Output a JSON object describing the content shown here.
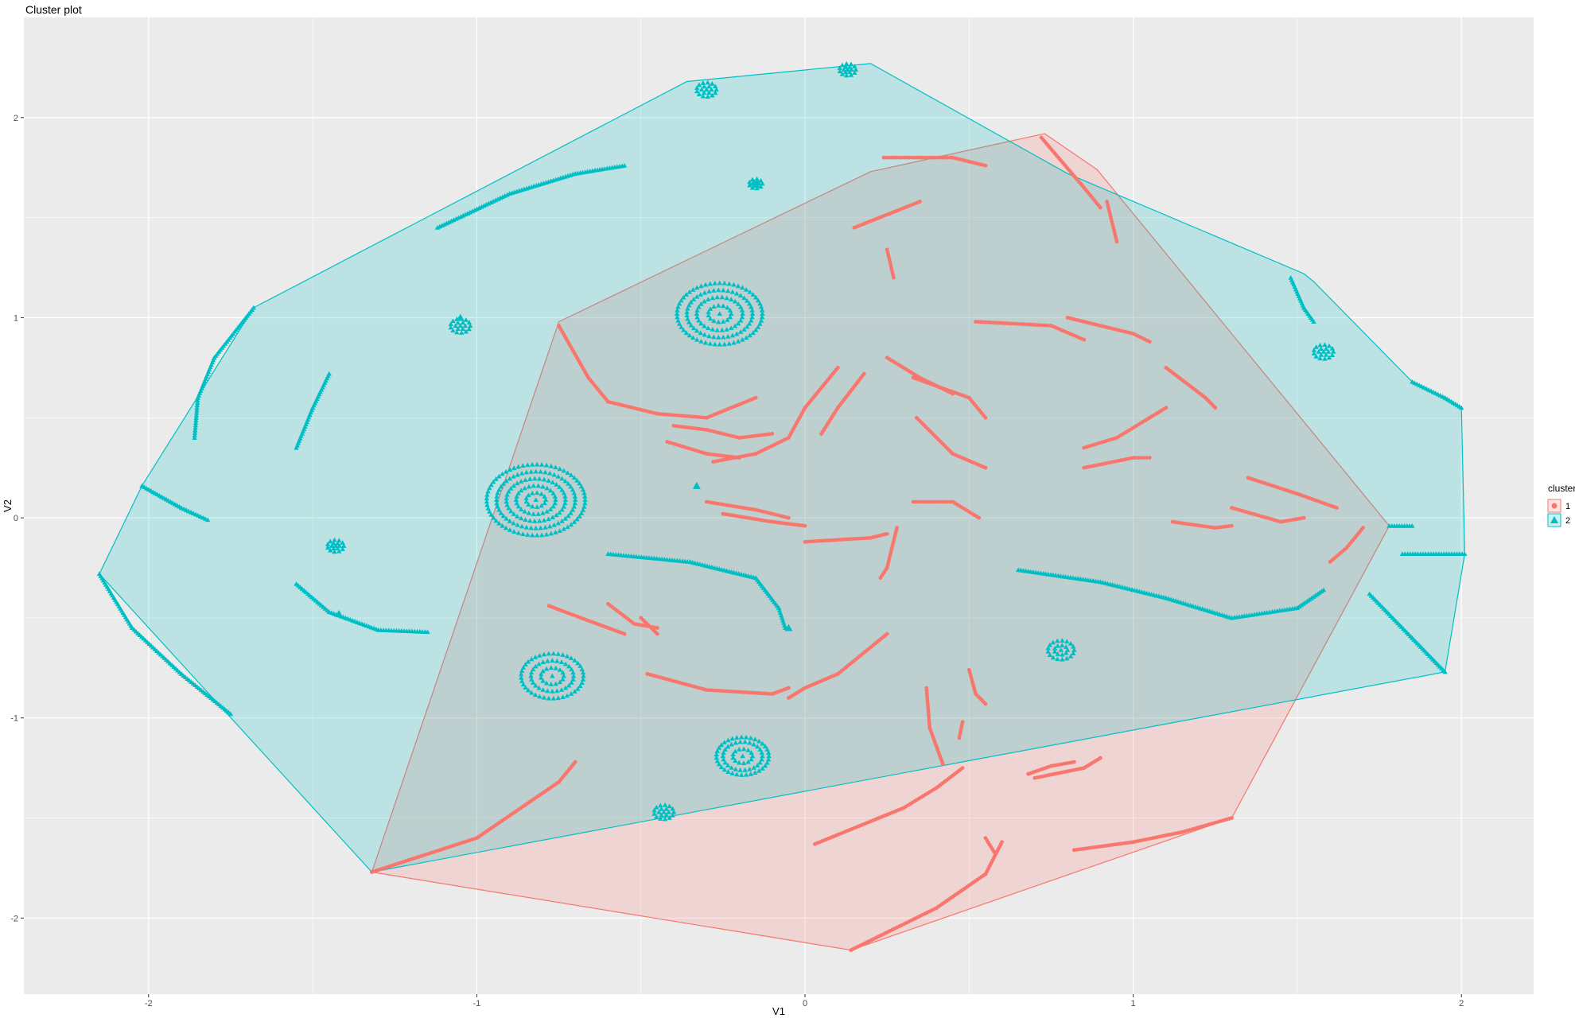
{
  "chart_data": {
    "type": "scatter",
    "title": "Cluster plot",
    "xlabel": "V1",
    "ylabel": "V2",
    "xlim": [
      -2.38,
      2.22
    ],
    "ylim": [
      -2.38,
      2.5
    ],
    "x_ticks": [
      -2,
      -1,
      0,
      1,
      2
    ],
    "y_ticks": [
      -2,
      -1,
      0,
      1,
      2
    ],
    "x_tick_labels": [
      "-2",
      "-1",
      "0",
      "1",
      "2"
    ],
    "y_tick_labels": [
      "-2",
      "-1",
      "0",
      "1",
      "2"
    ],
    "grid": true,
    "legend": {
      "title": "cluster",
      "placement": "right"
    },
    "colors": {
      "panel": "#ebebeb",
      "grid": "#ffffff",
      "cluster1": "#f8766d",
      "cluster2": "#00bfc4"
    },
    "clusters": [
      {
        "name": "1",
        "marker": "circle",
        "color": "#f8766d",
        "hull": [
          [
            -1.32,
            -1.77
          ],
          [
            0.14,
            -2.16
          ],
          [
            1.3,
            -1.5
          ],
          [
            1.78,
            -0.04
          ],
          [
            0.89,
            1.74
          ],
          [
            0.73,
            1.92
          ],
          [
            0.2,
            1.73
          ],
          [
            -0.75,
            0.98
          ]
        ],
        "segments": [
          [
            [
              -0.75,
              0.96
            ],
            [
              -0.66,
              0.7
            ],
            [
              -0.6,
              0.58
            ],
            [
              -0.45,
              0.52
            ],
            [
              -0.3,
              0.5
            ],
            [
              -0.15,
              0.6
            ]
          ],
          [
            [
              0.24,
              1.8
            ],
            [
              0.45,
              1.8
            ],
            [
              0.55,
              1.76
            ]
          ],
          [
            [
              0.15,
              1.45
            ],
            [
              0.35,
              1.58
            ]
          ],
          [
            [
              0.72,
              1.9
            ],
            [
              0.85,
              1.65
            ],
            [
              0.9,
              1.55
            ]
          ],
          [
            [
              0.92,
              1.58
            ],
            [
              0.95,
              1.38
            ]
          ],
          [
            [
              0.25,
              1.34
            ],
            [
              0.27,
              1.2
            ]
          ],
          [
            [
              0.52,
              0.98
            ],
            [
              0.75,
              0.96
            ],
            [
              0.85,
              0.89
            ]
          ],
          [
            [
              0.8,
              1.0
            ],
            [
              1.0,
              0.92
            ],
            [
              1.05,
              0.88
            ]
          ],
          [
            [
              0.25,
              0.8
            ],
            [
              0.35,
              0.7
            ],
            [
              0.45,
              0.62
            ]
          ],
          [
            [
              0.33,
              0.7
            ],
            [
              0.5,
              0.6
            ],
            [
              0.55,
              0.5
            ]
          ],
          [
            [
              0.34,
              0.5
            ],
            [
              0.45,
              0.32
            ],
            [
              0.55,
              0.25
            ]
          ],
          [
            [
              0.1,
              0.75
            ],
            [
              0.0,
              0.55
            ],
            [
              -0.05,
              0.4
            ]
          ],
          [
            [
              0.18,
              0.72
            ],
            [
              0.1,
              0.55
            ],
            [
              0.05,
              0.42
            ]
          ],
          [
            [
              -0.4,
              0.46
            ],
            [
              -0.3,
              0.44
            ],
            [
              -0.2,
              0.4
            ],
            [
              -0.1,
              0.42
            ]
          ],
          [
            [
              -0.42,
              0.38
            ],
            [
              -0.3,
              0.32
            ],
            [
              -0.2,
              0.3
            ]
          ],
          [
            [
              -0.28,
              0.28
            ],
            [
              -0.15,
              0.32
            ],
            [
              -0.05,
              0.4
            ]
          ],
          [
            [
              1.1,
              0.75
            ],
            [
              1.22,
              0.6
            ],
            [
              1.25,
              0.55
            ]
          ],
          [
            [
              0.85,
              0.35
            ],
            [
              0.95,
              0.4
            ],
            [
              1.05,
              0.5
            ],
            [
              1.1,
              0.55
            ]
          ],
          [
            [
              0.85,
              0.25
            ],
            [
              1.0,
              0.3
            ],
            [
              1.05,
              0.3
            ]
          ],
          [
            [
              -0.3,
              0.08
            ],
            [
              -0.15,
              0.04
            ],
            [
              -0.05,
              0.0
            ]
          ],
          [
            [
              -0.25,
              0.02
            ],
            [
              -0.1,
              -0.02
            ],
            [
              0.0,
              -0.04
            ]
          ],
          [
            [
              0.0,
              -0.12
            ],
            [
              0.2,
              -0.1
            ],
            [
              0.25,
              -0.08
            ]
          ],
          [
            [
              0.28,
              -0.05
            ],
            [
              0.25,
              -0.25
            ],
            [
              0.23,
              -0.3
            ]
          ],
          [
            [
              0.33,
              0.08
            ],
            [
              0.45,
              0.08
            ],
            [
              0.53,
              0.0
            ]
          ],
          [
            [
              1.35,
              0.2
            ],
            [
              1.5,
              0.12
            ],
            [
              1.62,
              0.05
            ]
          ],
          [
            [
              1.3,
              0.05
            ],
            [
              1.45,
              -0.02
            ],
            [
              1.52,
              0.0
            ]
          ],
          [
            [
              1.12,
              -0.02
            ],
            [
              1.25,
              -0.05
            ],
            [
              1.3,
              -0.04
            ]
          ],
          [
            [
              1.7,
              -0.05
            ],
            [
              1.65,
              -0.15
            ],
            [
              1.6,
              -0.22
            ]
          ],
          [
            [
              -0.78,
              -0.44
            ],
            [
              -0.65,
              -0.52
            ],
            [
              -0.55,
              -0.58
            ]
          ],
          [
            [
              -0.6,
              -0.43
            ],
            [
              -0.52,
              -0.53
            ],
            [
              -0.45,
              -0.55
            ]
          ],
          [
            [
              -0.5,
              -0.5
            ],
            [
              -0.45,
              -0.58
            ]
          ],
          [
            [
              -0.48,
              -0.78
            ],
            [
              -0.3,
              -0.86
            ],
            [
              -0.1,
              -0.88
            ],
            [
              -0.05,
              -0.85
            ]
          ],
          [
            [
              -0.05,
              -0.9
            ],
            [
              0.0,
              -0.85
            ],
            [
              0.1,
              -0.78
            ],
            [
              0.25,
              -0.58
            ]
          ],
          [
            [
              0.37,
              -0.85
            ],
            [
              0.38,
              -1.05
            ],
            [
              0.42,
              -1.23
            ]
          ],
          [
            [
              0.5,
              -0.76
            ],
            [
              0.52,
              -0.88
            ],
            [
              0.55,
              -0.93
            ]
          ],
          [
            [
              0.47,
              -1.1
            ],
            [
              0.48,
              -1.02
            ]
          ],
          [
            [
              -1.32,
              -1.77
            ],
            [
              -1.0,
              -1.6
            ],
            [
              -0.75,
              -1.32
            ],
            [
              -0.7,
              -1.22
            ]
          ],
          [
            [
              0.03,
              -1.63
            ],
            [
              0.3,
              -1.45
            ],
            [
              0.4,
              -1.35
            ],
            [
              0.48,
              -1.25
            ]
          ],
          [
            [
              0.14,
              -2.16
            ],
            [
              0.4,
              -1.95
            ],
            [
              0.55,
              -1.78
            ],
            [
              0.6,
              -1.62
            ]
          ],
          [
            [
              0.55,
              -1.6
            ],
            [
              0.58,
              -1.68
            ]
          ],
          [
            [
              0.68,
              -1.28
            ],
            [
              0.75,
              -1.24
            ],
            [
              0.82,
              -1.22
            ]
          ],
          [
            [
              0.7,
              -1.3
            ],
            [
              0.85,
              -1.25
            ],
            [
              0.9,
              -1.2
            ]
          ],
          [
            [
              0.82,
              -1.66
            ],
            [
              1.0,
              -1.62
            ],
            [
              1.15,
              -1.57
            ],
            [
              1.3,
              -1.5
            ]
          ]
        ]
      },
      {
        "name": "2",
        "marker": "triangle",
        "color": "#00bfc4",
        "hull": [
          [
            -1.32,
            -1.77
          ],
          [
            1.95,
            -0.77
          ],
          [
            2.01,
            -0.18
          ],
          [
            2.0,
            0.55
          ],
          [
            1.85,
            0.68
          ],
          [
            1.55,
            1.18
          ],
          [
            1.52,
            1.22
          ],
          [
            0.8,
            1.72
          ],
          [
            0.2,
            2.27
          ],
          [
            -0.36,
            2.18
          ],
          [
            -1.68,
            1.05
          ],
          [
            -2.02,
            0.16
          ],
          [
            -2.15,
            -0.28
          ]
        ],
        "segments": [
          [
            [
              -2.15,
              -0.28
            ],
            [
              -2.05,
              -0.55
            ],
            [
              -1.9,
              -0.78
            ],
            [
              -1.75,
              -0.98
            ]
          ],
          [
            [
              -1.68,
              1.05
            ],
            [
              -1.8,
              0.8
            ],
            [
              -1.85,
              0.6
            ],
            [
              -1.86,
              0.4
            ]
          ],
          [
            [
              -1.55,
              -0.33
            ],
            [
              -1.45,
              -0.47
            ],
            [
              -1.3,
              -0.56
            ],
            [
              -1.15,
              -0.57
            ]
          ],
          [
            [
              -2.02,
              0.16
            ],
            [
              -1.9,
              0.05
            ],
            [
              -1.82,
              -0.01
            ]
          ],
          [
            [
              -1.12,
              1.45
            ],
            [
              -0.9,
              1.62
            ],
            [
              -0.7,
              1.72
            ],
            [
              -0.55,
              1.76
            ]
          ],
          [
            [
              -1.45,
              0.72
            ],
            [
              -1.5,
              0.55
            ],
            [
              -1.55,
              0.35
            ]
          ],
          [
            [
              -0.6,
              -0.18
            ],
            [
              -0.35,
              -0.22
            ],
            [
              -0.15,
              -0.3
            ],
            [
              -0.08,
              -0.45
            ],
            [
              -0.06,
              -0.55
            ]
          ],
          [
            [
              0.65,
              -0.26
            ],
            [
              0.9,
              -0.32
            ],
            [
              1.1,
              -0.4
            ],
            [
              1.3,
              -0.5
            ],
            [
              1.5,
              -0.45
            ],
            [
              1.58,
              -0.36
            ]
          ],
          [
            [
              1.82,
              -0.18
            ],
            [
              2.01,
              -0.18
            ]
          ],
          [
            [
              1.72,
              -0.38
            ],
            [
              1.85,
              -0.6
            ],
            [
              1.95,
              -0.77
            ]
          ],
          [
            [
              1.78,
              -0.04
            ],
            [
              1.85,
              -0.04
            ]
          ],
          [
            [
              1.48,
              1.2
            ],
            [
              1.52,
              1.05
            ],
            [
              1.55,
              0.98
            ]
          ],
          [
            [
              1.85,
              0.68
            ],
            [
              1.95,
              0.6
            ],
            [
              2.0,
              0.55
            ]
          ]
        ],
        "rings": [
          {
            "center": [
              -0.26,
              1.02
            ],
            "radii": [
              0.035,
              0.07,
              0.1,
              0.13
            ]
          },
          {
            "center": [
              -0.82,
              0.09
            ],
            "radii": [
              0.03,
              0.06,
              0.09,
              0.12,
              0.15
            ]
          },
          {
            "center": [
              -0.77,
              -0.79
            ],
            "radii": [
              0.035,
              0.065,
              0.095
            ]
          },
          {
            "center": [
              -0.19,
              -1.19
            ],
            "radii": [
              0.03,
              0.06,
              0.08
            ]
          },
          {
            "center": [
              0.78,
              -0.66
            ],
            "radii": [
              0.02,
              0.04
            ]
          },
          {
            "center": [
              1.58,
              0.83
            ],
            "radii": [
              0.015,
              0.03
            ]
          },
          {
            "center": [
              -1.05,
              0.96
            ],
            "radii": [
              0.015,
              0.03
            ]
          },
          {
            "center": [
              -0.3,
              2.14
            ],
            "radii": [
              0.015,
              0.03
            ]
          },
          {
            "center": [
              0.13,
              2.24
            ],
            "radii": [
              0.012,
              0.025
            ]
          },
          {
            "center": [
              -1.43,
              -0.14
            ],
            "radii": [
              0.012,
              0.025
            ]
          },
          {
            "center": [
              -0.43,
              -1.47
            ],
            "radii": [
              0.015,
              0.03
            ]
          },
          {
            "center": [
              -0.15,
              1.67
            ],
            "radii": [
              0.01,
              0.02
            ]
          }
        ],
        "points": [
          [
            -0.33,
            0.16
          ],
          [
            -0.05,
            -0.55
          ],
          [
            -1.42,
            -0.48
          ],
          [
            -1.05,
            1.0
          ]
        ]
      }
    ]
  }
}
